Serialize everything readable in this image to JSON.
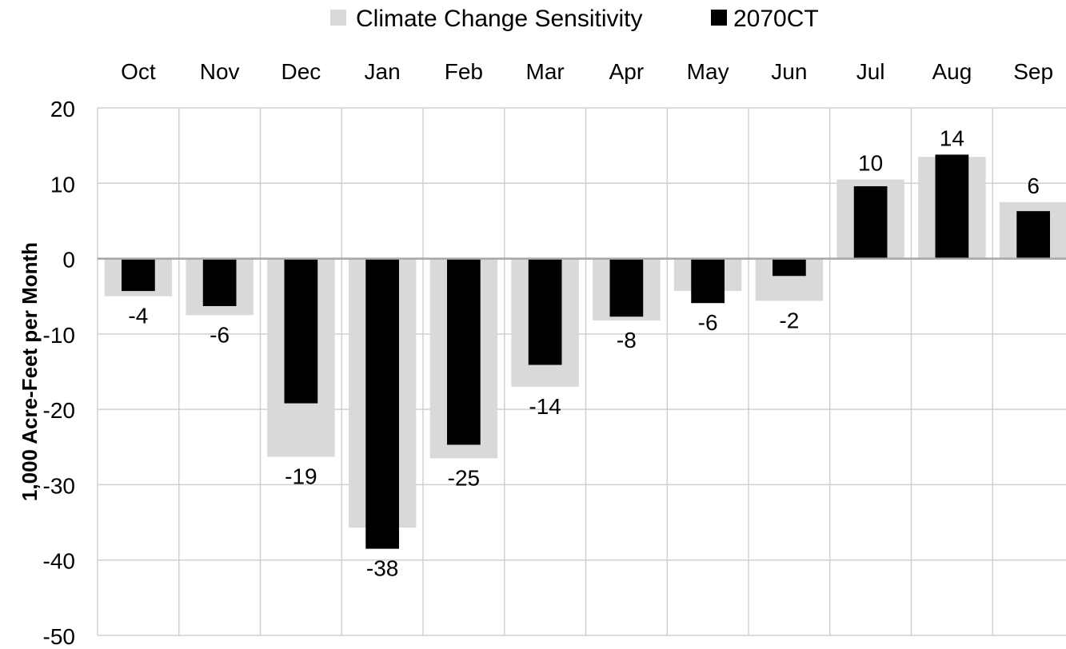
{
  "chart_data": {
    "type": "bar",
    "title": "",
    "xlabel": "",
    "ylabel": "1,000 Acre-Feet per Month",
    "ylim": [
      -50,
      20
    ],
    "yticks": [
      20,
      10,
      0,
      -10,
      -20,
      -30,
      -40,
      -50
    ],
    "categories": [
      "Oct",
      "Nov",
      "Dec",
      "Jan",
      "Feb",
      "Mar",
      "Apr",
      "May",
      "Jun",
      "Jul",
      "Aug",
      "Sep"
    ],
    "series": [
      {
        "name": "Climate Change Sensitivity",
        "color": "#d9d9d9",
        "values": [
          -5,
          -7.5,
          -26.3,
          -35.7,
          -26.5,
          -17,
          -8.2,
          -4.3,
          -5.6,
          10.5,
          13.5,
          7.5
        ]
      },
      {
        "name": "2070CT",
        "color": "#000000",
        "values": [
          -4.3,
          -6.3,
          -19.2,
          -38.5,
          -24.7,
          -14.1,
          -7.7,
          -5.9,
          -2.3,
          9.6,
          13.8,
          6.3
        ],
        "data_labels": [
          "-4",
          "-6",
          "-19",
          "-38",
          "-25",
          "-14",
          "-8",
          "-6",
          "-2",
          "10",
          "14",
          "6"
        ]
      }
    ],
    "grid": {
      "horizontal": true,
      "vertical": true
    },
    "legend": {
      "position": "top"
    }
  }
}
